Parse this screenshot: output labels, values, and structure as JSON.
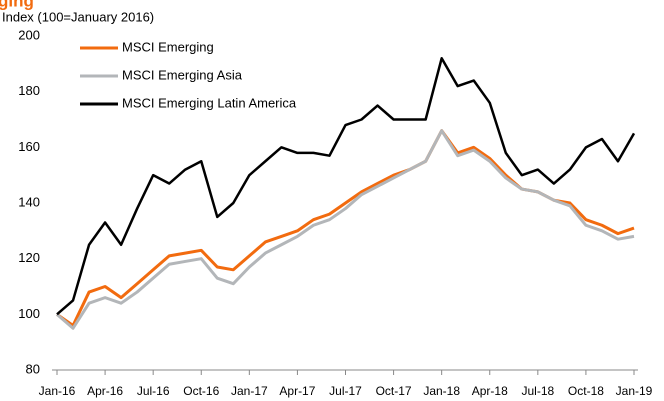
{
  "chart_data": {
    "type": "line",
    "title": "ging",
    "subtitle": "Index (100=January 2016)",
    "categories": [
      "Jan-16",
      null,
      null,
      "Apr-16",
      null,
      null,
      "Jul-16",
      null,
      null,
      "Oct-16",
      null,
      null,
      "Jan-17",
      null,
      null,
      "Apr-17",
      null,
      null,
      "Jul-17",
      null,
      null,
      "Oct-17",
      null,
      null,
      "Jan-18",
      null,
      null,
      "Apr-18",
      null,
      null,
      "Jul-18",
      null,
      null,
      "Oct-18",
      null,
      null,
      "Jan-19"
    ],
    "series": [
      {
        "name": "MSCI Emerging",
        "color": "#f26b0f",
        "values": [
          100,
          96,
          108,
          110,
          106,
          111,
          116,
          121,
          122,
          123,
          117,
          116,
          121,
          126,
          128,
          130,
          134,
          136,
          140,
          144,
          147,
          150,
          152,
          155,
          166,
          158,
          160,
          156,
          150,
          145,
          144,
          141,
          140,
          134,
          132,
          129,
          131
        ]
      },
      {
        "name": "MSCI Emerging Asia",
        "color": "#b3b6b9",
        "values": [
          100,
          95,
          104,
          106,
          104,
          108,
          113,
          118,
          119,
          120,
          113,
          111,
          117,
          122,
          125,
          128,
          132,
          134,
          138,
          143,
          146,
          149,
          152,
          155,
          166,
          157,
          159,
          155,
          149,
          145,
          144,
          141,
          139,
          132,
          130,
          127,
          128
        ]
      },
      {
        "name": "MSCI Emerging Latin America",
        "color": "#000000",
        "values": [
          100,
          105,
          125,
          133,
          125,
          138,
          150,
          147,
          152,
          155,
          135,
          140,
          150,
          155,
          160,
          158,
          158,
          157,
          168,
          170,
          175,
          170,
          170,
          170,
          192,
          182,
          184,
          176,
          158,
          150,
          152,
          147,
          152,
          160,
          163,
          155,
          165
        ]
      }
    ],
    "ylim": [
      80,
      200
    ],
    "yticks": [
      80,
      100,
      120,
      140,
      160,
      180,
      200
    ],
    "legend": "top-left"
  }
}
